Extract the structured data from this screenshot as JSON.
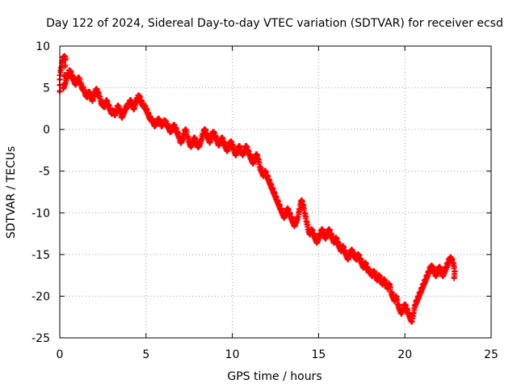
{
  "chart_data": {
    "type": "scatter",
    "title": "Day 122 of 2024, Sidereal Day-to-day VTEC variation (SDTVAR) for receiver ecsd",
    "xlabel": "GPS time / hours",
    "ylabel": "SDTVAR / TECUs",
    "xlim": [
      0,
      25
    ],
    "ylim": [
      -25,
      10
    ],
    "xticks": [
      0,
      5,
      10,
      15,
      20,
      25
    ],
    "xtick_labels": [
      "0",
      "5",
      "10",
      "15",
      "20",
      "25"
    ],
    "yticks": [
      -25,
      -20,
      -15,
      -10,
      -5,
      0,
      5,
      10
    ],
    "ytick_labels": [
      "-25",
      "-20",
      "-15",
      "-10",
      "-5",
      "0",
      "5",
      "10"
    ],
    "grid": true,
    "marker": "+",
    "series": [
      {
        "name": "SDTVAR",
        "color": "#ff0000",
        "points": [
          [
            0.0,
            4.5
          ],
          [
            0.0,
            6.5
          ],
          [
            0.1,
            7.5
          ],
          [
            0.15,
            8.3
          ],
          [
            0.25,
            8.7
          ],
          [
            0.35,
            8.5
          ],
          [
            0.2,
            5.0
          ],
          [
            0.3,
            5.5
          ],
          [
            0.4,
            6.2
          ],
          [
            0.5,
            6.8
          ],
          [
            0.6,
            7.0
          ],
          [
            0.7,
            6.5
          ],
          [
            0.8,
            6.0
          ],
          [
            0.9,
            5.5
          ],
          [
            1.0,
            5.8
          ],
          [
            1.1,
            6.2
          ],
          [
            1.2,
            5.6
          ],
          [
            1.3,
            5.0
          ],
          [
            1.4,
            4.8
          ],
          [
            1.5,
            4.2
          ],
          [
            1.6,
            4.0
          ],
          [
            1.7,
            4.5
          ],
          [
            1.8,
            4.0
          ],
          [
            1.9,
            3.5
          ],
          [
            2.0,
            4.2
          ],
          [
            2.1,
            4.8
          ],
          [
            2.2,
            4.5
          ],
          [
            2.3,
            4.0
          ],
          [
            2.4,
            3.2
          ],
          [
            2.5,
            3.0
          ],
          [
            2.6,
            2.8
          ],
          [
            2.7,
            3.5
          ],
          [
            2.8,
            3.0
          ],
          [
            2.9,
            2.5
          ],
          [
            3.0,
            2.0
          ],
          [
            3.1,
            2.2
          ],
          [
            3.2,
            1.8
          ],
          [
            3.3,
            2.5
          ],
          [
            3.4,
            2.8
          ],
          [
            3.5,
            2.2
          ],
          [
            3.6,
            1.5
          ],
          [
            3.7,
            2.0
          ],
          [
            3.8,
            2.5
          ],
          [
            3.9,
            2.8
          ],
          [
            4.0,
            3.0
          ],
          [
            4.1,
            3.5
          ],
          [
            4.2,
            3.0
          ],
          [
            4.3,
            2.5
          ],
          [
            4.4,
            3.2
          ],
          [
            4.5,
            3.8
          ],
          [
            4.6,
            4.0
          ],
          [
            4.7,
            3.5
          ],
          [
            4.8,
            3.0
          ],
          [
            4.9,
            2.8
          ],
          [
            5.0,
            2.5
          ],
          [
            5.1,
            2.0
          ],
          [
            5.2,
            1.5
          ],
          [
            5.3,
            1.2
          ],
          [
            5.4,
            1.0
          ],
          [
            5.5,
            0.5
          ],
          [
            5.6,
            0.8
          ],
          [
            5.7,
            1.2
          ],
          [
            5.8,
            1.0
          ],
          [
            5.9,
            0.5
          ],
          [
            6.0,
            0.8
          ],
          [
            6.1,
            1.0
          ],
          [
            6.2,
            0.6
          ],
          [
            6.3,
            0.3
          ],
          [
            6.4,
            -0.2
          ],
          [
            6.5,
            0.0
          ],
          [
            6.6,
            0.5
          ],
          [
            6.7,
            0.2
          ],
          [
            6.8,
            -0.3
          ],
          [
            6.9,
            -0.8
          ],
          [
            7.0,
            -1.5
          ],
          [
            7.1,
            -1.2
          ],
          [
            7.2,
            -0.5
          ],
          [
            7.3,
            0.0
          ],
          [
            7.4,
            -0.8
          ],
          [
            7.5,
            -1.5
          ],
          [
            7.6,
            -2.0
          ],
          [
            7.7,
            -1.5
          ],
          [
            7.8,
            -1.0
          ],
          [
            7.9,
            -1.5
          ],
          [
            8.0,
            -2.0
          ],
          [
            8.1,
            -1.8
          ],
          [
            8.2,
            -1.2
          ],
          [
            8.3,
            -0.5
          ],
          [
            8.4,
            0.0
          ],
          [
            8.5,
            -0.5
          ],
          [
            8.6,
            -1.0
          ],
          [
            8.7,
            -1.5
          ],
          [
            8.8,
            -0.8
          ],
          [
            8.9,
            -0.3
          ],
          [
            9.0,
            -0.8
          ],
          [
            9.1,
            -1.2
          ],
          [
            9.2,
            -1.8
          ],
          [
            9.3,
            -1.5
          ],
          [
            9.4,
            -1.0
          ],
          [
            9.5,
            -1.5
          ],
          [
            9.6,
            -2.0
          ],
          [
            9.7,
            -2.5
          ],
          [
            9.8,
            -2.0
          ],
          [
            9.9,
            -1.5
          ],
          [
            10.0,
            -1.8
          ],
          [
            10.1,
            -2.5
          ],
          [
            10.2,
            -3.0
          ],
          [
            10.3,
            -2.5
          ],
          [
            10.4,
            -2.0
          ],
          [
            10.5,
            -2.5
          ],
          [
            10.6,
            -3.0
          ],
          [
            10.7,
            -2.5
          ],
          [
            10.8,
            -2.0
          ],
          [
            10.9,
            -2.5
          ],
          [
            11.0,
            -3.0
          ],
          [
            11.1,
            -3.5
          ],
          [
            11.2,
            -4.0
          ],
          [
            11.3,
            -3.5
          ],
          [
            11.4,
            -3.0
          ],
          [
            11.5,
            -3.5
          ],
          [
            11.6,
            -4.5
          ],
          [
            11.7,
            -5.0
          ],
          [
            11.8,
            -5.5
          ],
          [
            11.9,
            -5.0
          ],
          [
            12.0,
            -5.5
          ],
          [
            12.1,
            -6.0
          ],
          [
            12.2,
            -6.5
          ],
          [
            12.3,
            -7.0
          ],
          [
            12.4,
            -7.5
          ],
          [
            12.5,
            -8.0
          ],
          [
            12.6,
            -8.5
          ],
          [
            12.7,
            -9.0
          ],
          [
            12.8,
            -9.5
          ],
          [
            12.9,
            -10.0
          ],
          [
            13.0,
            -10.5
          ],
          [
            13.1,
            -10.0
          ],
          [
            13.2,
            -9.5
          ],
          [
            13.3,
            -10.0
          ],
          [
            13.4,
            -10.5
          ],
          [
            13.5,
            -11.0
          ],
          [
            13.6,
            -11.5
          ],
          [
            13.7,
            -11.0
          ],
          [
            13.8,
            -10.5
          ],
          [
            13.9,
            -9.5
          ],
          [
            14.0,
            -8.5
          ],
          [
            14.1,
            -9.0
          ],
          [
            14.2,
            -10.0
          ],
          [
            14.3,
            -11.0
          ],
          [
            14.4,
            -12.0
          ],
          [
            14.5,
            -12.5
          ],
          [
            14.6,
            -12.0
          ],
          [
            14.7,
            -12.5
          ],
          [
            14.8,
            -13.0
          ],
          [
            14.9,
            -13.5
          ],
          [
            15.0,
            -13.0
          ],
          [
            15.1,
            -12.5
          ],
          [
            15.2,
            -12.0
          ],
          [
            15.3,
            -12.5
          ],
          [
            15.4,
            -13.0
          ],
          [
            15.5,
            -12.5
          ],
          [
            15.6,
            -12.0
          ],
          [
            15.7,
            -12.5
          ],
          [
            15.8,
            -13.0
          ],
          [
            15.9,
            -13.5
          ],
          [
            16.0,
            -13.0
          ],
          [
            16.1,
            -13.5
          ],
          [
            16.2,
            -14.0
          ],
          [
            16.3,
            -14.5
          ],
          [
            16.4,
            -14.0
          ],
          [
            16.5,
            -14.5
          ],
          [
            16.6,
            -15.0
          ],
          [
            16.7,
            -15.5
          ],
          [
            16.8,
            -15.0
          ],
          [
            16.9,
            -14.5
          ],
          [
            17.0,
            -14.8
          ],
          [
            17.1,
            -15.2
          ],
          [
            17.2,
            -15.5
          ],
          [
            17.3,
            -15.0
          ],
          [
            17.4,
            -15.5
          ],
          [
            17.5,
            -16.0
          ],
          [
            17.6,
            -16.5
          ],
          [
            17.7,
            -16.0
          ],
          [
            17.8,
            -16.5
          ],
          [
            17.9,
            -17.0
          ],
          [
            18.0,
            -17.0
          ],
          [
            18.1,
            -17.5
          ],
          [
            18.2,
            -17.0
          ],
          [
            18.3,
            -17.5
          ],
          [
            18.4,
            -18.0
          ],
          [
            18.5,
            -17.5
          ],
          [
            18.6,
            -18.0
          ],
          [
            18.7,
            -18.5
          ],
          [
            18.8,
            -18.0
          ],
          [
            18.9,
            -18.5
          ],
          [
            19.0,
            -19.0
          ],
          [
            19.1,
            -18.5
          ],
          [
            19.2,
            -19.5
          ],
          [
            19.3,
            -20.0
          ],
          [
            19.4,
            -20.5
          ],
          [
            19.5,
            -20.0
          ],
          [
            19.6,
            -21.0
          ],
          [
            19.7,
            -21.5
          ],
          [
            19.8,
            -22.0
          ],
          [
            19.9,
            -21.5
          ],
          [
            20.0,
            -21.0
          ],
          [
            20.1,
            -21.5
          ],
          [
            20.2,
            -22.0
          ],
          [
            20.3,
            -22.5
          ],
          [
            20.4,
            -23.0
          ],
          [
            20.5,
            -22.0
          ],
          [
            20.6,
            -21.0
          ],
          [
            20.7,
            -20.5
          ],
          [
            20.8,
            -20.0
          ],
          [
            20.9,
            -19.5
          ],
          [
            21.0,
            -19.0
          ],
          [
            21.1,
            -18.5
          ],
          [
            21.2,
            -18.0
          ],
          [
            21.3,
            -17.5
          ],
          [
            21.4,
            -17.0
          ],
          [
            21.5,
            -16.5
          ],
          [
            21.6,
            -16.5
          ],
          [
            21.7,
            -17.0
          ],
          [
            21.8,
            -17.5
          ],
          [
            21.9,
            -17.0
          ],
          [
            22.0,
            -16.5
          ],
          [
            22.1,
            -17.0
          ],
          [
            22.2,
            -17.5
          ],
          [
            22.3,
            -17.0
          ],
          [
            22.4,
            -16.5
          ],
          [
            22.5,
            -16.0
          ],
          [
            22.6,
            -15.5
          ],
          [
            22.7,
            -15.5
          ],
          [
            22.8,
            -16.0
          ],
          [
            22.9,
            -17.0
          ],
          [
            22.85,
            -17.8
          ]
        ]
      }
    ]
  }
}
